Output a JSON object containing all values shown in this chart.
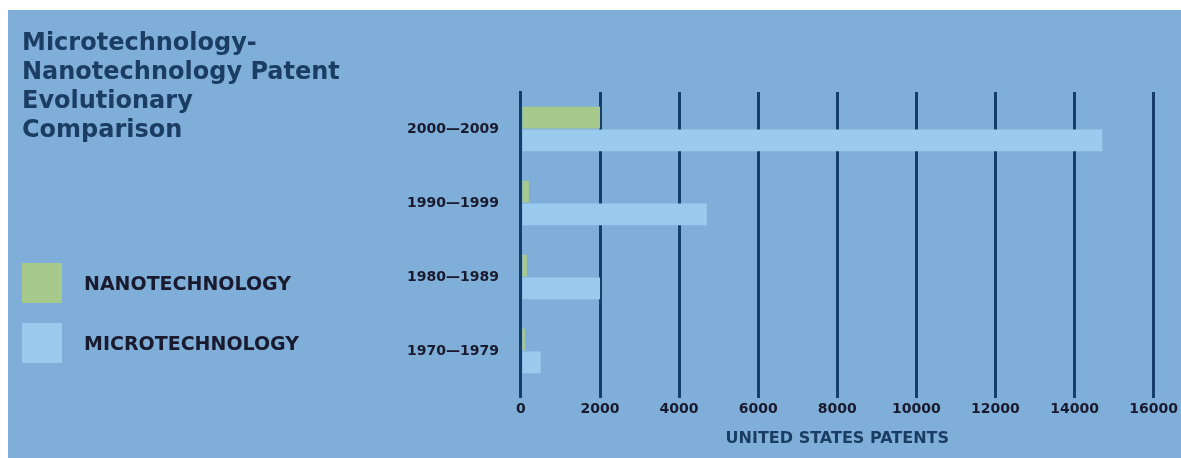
{
  "chart_data": {
    "type": "bar",
    "orientation": "horizontal",
    "title": "Microtechnology-Nanotechnology Patent Evolutionary Comparison",
    "xlabel": "UNITED STATES PATENTS",
    "categories": [
      "2000—2009",
      "1990—1999",
      "1980—1989",
      "1970—1979"
    ],
    "series": [
      {
        "name": "NANOTECHNOLOGY",
        "color": "#a8c98c",
        "values": [
          2000,
          200,
          150,
          100
        ]
      },
      {
        "name": "MICROTECHNOLOGY",
        "color": "#9acbee",
        "values": [
          14700,
          4700,
          2000,
          500
        ]
      }
    ],
    "xlim": [
      0,
      16000
    ],
    "xticks": [
      0,
      2000,
      4000,
      6000,
      8000,
      10000,
      12000,
      14000,
      16000
    ],
    "grid": "x",
    "legend": "left"
  }
}
